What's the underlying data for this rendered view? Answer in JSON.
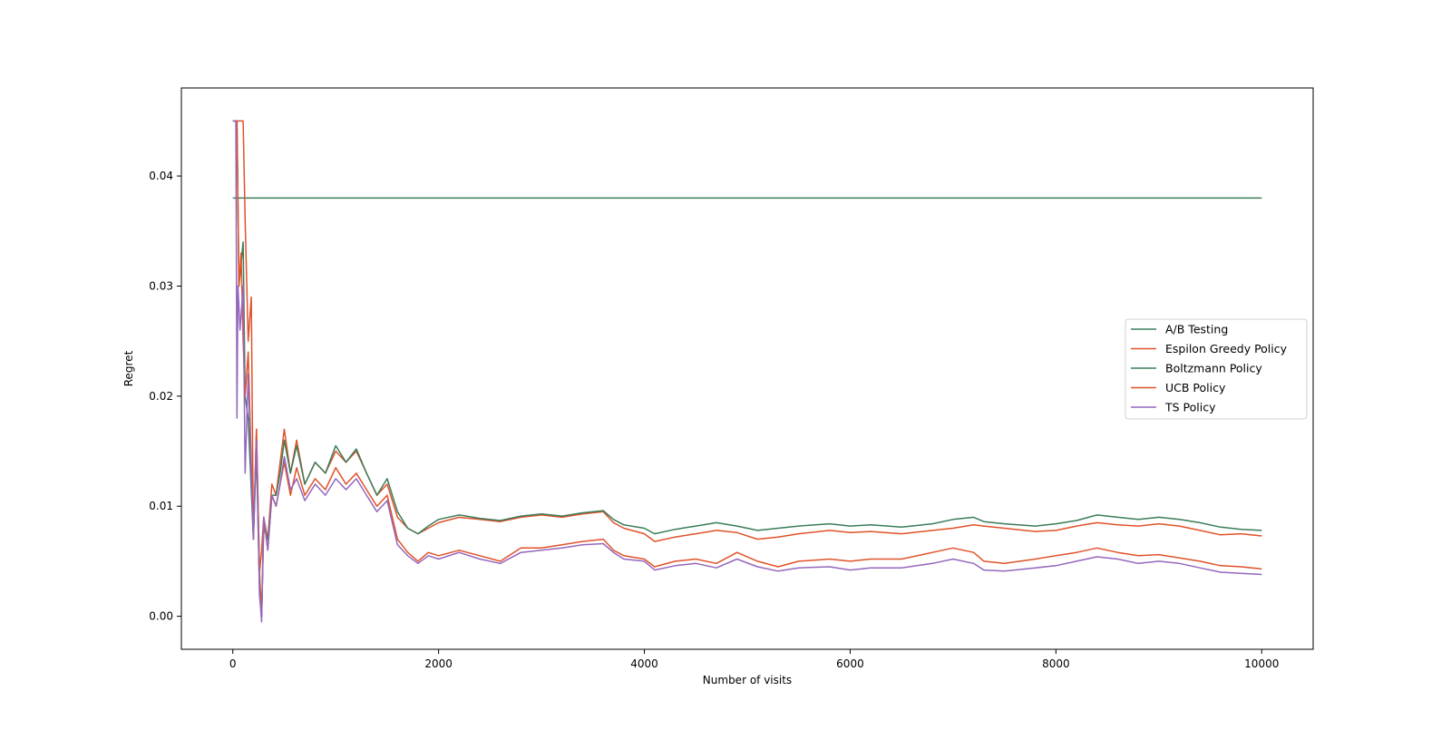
{
  "chart_data": {
    "type": "line",
    "title": "",
    "xlabel": "Number of visits",
    "ylabel": "Regret",
    "xlim": [
      -500,
      10500
    ],
    "ylim": [
      -0.003,
      0.048
    ],
    "xticks": [
      0,
      2000,
      4000,
      6000,
      8000,
      10000
    ],
    "xtick_labels": [
      "0",
      "2000",
      "4000",
      "6000",
      "8000",
      "10000"
    ],
    "yticks": [
      0.0,
      0.01,
      0.02,
      0.03,
      0.04
    ],
    "ytick_labels": [
      "0.00",
      "0.01",
      "0.02",
      "0.03",
      "0.04"
    ],
    "grid": false,
    "legend_position": "center-right",
    "series": [
      {
        "name": "A/B Testing",
        "color": "#3a7d5a",
        "x": [
          0,
          10000
        ],
        "y": [
          0.038,
          0.038
        ]
      },
      {
        "name": "Espilon Greedy Policy",
        "color": "#e0522a",
        "x": [
          0,
          50,
          60,
          100,
          120,
          150,
          180,
          200,
          230,
          260,
          280,
          300,
          340,
          380,
          420,
          460,
          500,
          560,
          620,
          700,
          800,
          900,
          1000,
          1100,
          1200,
          1300,
          1400,
          1500,
          1600,
          1700,
          1800,
          1900,
          2000,
          2200,
          2400,
          2600,
          2800,
          3000,
          3200,
          3400,
          3600,
          3700,
          3800,
          4000,
          4100,
          4300,
          4500,
          4700,
          4900,
          5100,
          5300,
          5500,
          5800,
          6000,
          6200,
          6500,
          6800,
          7000,
          7200,
          7300,
          7500,
          7800,
          8000,
          8200,
          8400,
          8600,
          8800,
          9000,
          9200,
          9400,
          9600,
          9800,
          10000
        ],
        "y": [
          0.045,
          0.045,
          0.045,
          0.045,
          0.036,
          0.025,
          0.029,
          0.007,
          0.017,
          0.004,
          0.006,
          0.009,
          0.007,
          0.012,
          0.011,
          0.014,
          0.017,
          0.013,
          0.016,
          0.012,
          0.014,
          0.013,
          0.015,
          0.014,
          0.015,
          0.013,
          0.011,
          0.012,
          0.009,
          0.008,
          0.0075,
          0.008,
          0.0085,
          0.009,
          0.0088,
          0.0086,
          0.009,
          0.0092,
          0.009,
          0.0093,
          0.0095,
          0.0085,
          0.008,
          0.0075,
          0.0068,
          0.0072,
          0.0075,
          0.0078,
          0.0076,
          0.007,
          0.0072,
          0.0075,
          0.0078,
          0.0076,
          0.0077,
          0.0075,
          0.0078,
          0.008,
          0.0083,
          0.0082,
          0.008,
          0.0077,
          0.0078,
          0.0082,
          0.0085,
          0.0083,
          0.0082,
          0.0084,
          0.0082,
          0.0078,
          0.0074,
          0.0075,
          0.0073
        ]
      },
      {
        "name": "Boltzmann Policy",
        "color": "#3a7d5a",
        "x": [
          0,
          40,
          60,
          100,
          120,
          150,
          200,
          230,
          260,
          280,
          300,
          340,
          380,
          420,
          460,
          500,
          560,
          620,
          700,
          800,
          900,
          1000,
          1100,
          1200,
          1300,
          1400,
          1500,
          1600,
          1700,
          1800,
          1900,
          2000,
          2200,
          2400,
          2600,
          2800,
          3000,
          3200,
          3400,
          3600,
          3700,
          3800,
          4000,
          4100,
          4300,
          4500,
          4700,
          4900,
          5100,
          5300,
          5500,
          5800,
          6000,
          6200,
          6500,
          6800,
          7000,
          7200,
          7300,
          7500,
          7800,
          8000,
          8200,
          8400,
          8600,
          8800,
          9000,
          9200,
          9400,
          9600,
          9800,
          10000
        ],
        "y": [
          0.045,
          0.045,
          0.03,
          0.034,
          0.02,
          0.018,
          0.007,
          0.015,
          0.002,
          0.0,
          0.008,
          0.007,
          0.011,
          0.011,
          0.013,
          0.016,
          0.013,
          0.0155,
          0.012,
          0.014,
          0.013,
          0.0155,
          0.014,
          0.0152,
          0.013,
          0.011,
          0.0125,
          0.0095,
          0.008,
          0.0075,
          0.0082,
          0.0088,
          0.0092,
          0.0089,
          0.0087,
          0.0091,
          0.0093,
          0.0091,
          0.0094,
          0.0096,
          0.0088,
          0.0083,
          0.008,
          0.0075,
          0.0079,
          0.0082,
          0.0085,
          0.0082,
          0.0078,
          0.008,
          0.0082,
          0.0084,
          0.0082,
          0.0083,
          0.0081,
          0.0084,
          0.0088,
          0.009,
          0.0086,
          0.0084,
          0.0082,
          0.0084,
          0.0087,
          0.0092,
          0.009,
          0.0088,
          0.009,
          0.0088,
          0.0085,
          0.0081,
          0.0079,
          0.0078
        ]
      },
      {
        "name": "UCB Policy",
        "color": "#e0522a",
        "x": [
          0,
          40,
          60,
          80,
          100,
          120,
          150,
          200,
          230,
          260,
          280,
          300,
          340,
          380,
          420,
          460,
          500,
          560,
          620,
          700,
          800,
          900,
          1000,
          1100,
          1200,
          1300,
          1400,
          1500,
          1600,
          1700,
          1800,
          1900,
          2000,
          2200,
          2400,
          2600,
          2800,
          3000,
          3200,
          3400,
          3600,
          3700,
          3800,
          4000,
          4100,
          4300,
          4500,
          4700,
          4900,
          5100,
          5300,
          5500,
          5800,
          6000,
          6200,
          6500,
          6800,
          7000,
          7200,
          7300,
          7500,
          7800,
          8000,
          8200,
          8400,
          8600,
          8800,
          9000,
          9200,
          9400,
          9600,
          9800,
          10000
        ],
        "y": [
          0.045,
          0.045,
          0.03,
          0.033,
          0.025,
          0.02,
          0.024,
          0.007,
          0.017,
          0.004,
          0.0,
          0.009,
          0.006,
          0.011,
          0.01,
          0.012,
          0.014,
          0.011,
          0.0135,
          0.011,
          0.0125,
          0.0115,
          0.0135,
          0.012,
          0.013,
          0.0115,
          0.01,
          0.011,
          0.007,
          0.0058,
          0.005,
          0.0058,
          0.0055,
          0.006,
          0.0055,
          0.005,
          0.0062,
          0.0062,
          0.0065,
          0.0068,
          0.007,
          0.006,
          0.0055,
          0.0052,
          0.0045,
          0.005,
          0.0052,
          0.0048,
          0.0058,
          0.005,
          0.0045,
          0.005,
          0.0052,
          0.005,
          0.0052,
          0.0052,
          0.0058,
          0.0062,
          0.0058,
          0.005,
          0.0048,
          0.0052,
          0.0055,
          0.0058,
          0.0062,
          0.0058,
          0.0055,
          0.0056,
          0.0053,
          0.005,
          0.0046,
          0.0045,
          0.0043
        ]
      },
      {
        "name": "TS Policy",
        "color": "#9467bd",
        "x": [
          0,
          30,
          40,
          50,
          70,
          100,
          120,
          150,
          200,
          230,
          260,
          280,
          300,
          340,
          380,
          420,
          460,
          500,
          560,
          620,
          700,
          800,
          900,
          1000,
          1100,
          1200,
          1300,
          1400,
          1500,
          1600,
          1700,
          1800,
          1900,
          2000,
          2200,
          2400,
          2600,
          2800,
          3000,
          3200,
          3400,
          3600,
          3700,
          3800,
          4000,
          4100,
          4300,
          4500,
          4700,
          4900,
          5100,
          5300,
          5500,
          5800,
          6000,
          6200,
          6500,
          6800,
          7000,
          7200,
          7300,
          7500,
          7800,
          8000,
          8200,
          8400,
          8600,
          8800,
          9000,
          9200,
          9400,
          9600,
          9800,
          10000
        ],
        "y": [
          0.045,
          0.045,
          0.018,
          0.03,
          0.026,
          0.03,
          0.013,
          0.022,
          0.007,
          0.016,
          0.002,
          -0.0005,
          0.009,
          0.006,
          0.011,
          0.01,
          0.012,
          0.0145,
          0.0115,
          0.0125,
          0.0105,
          0.012,
          0.011,
          0.0125,
          0.0115,
          0.0125,
          0.011,
          0.0095,
          0.0105,
          0.0065,
          0.0055,
          0.0048,
          0.0055,
          0.0052,
          0.0058,
          0.0052,
          0.0048,
          0.0058,
          0.006,
          0.0062,
          0.0065,
          0.0066,
          0.0058,
          0.0052,
          0.005,
          0.0042,
          0.0046,
          0.0048,
          0.0044,
          0.0052,
          0.0045,
          0.0041,
          0.0044,
          0.0045,
          0.0042,
          0.0044,
          0.0044,
          0.0048,
          0.0052,
          0.0048,
          0.0042,
          0.0041,
          0.0044,
          0.0046,
          0.005,
          0.0054,
          0.0052,
          0.0048,
          0.005,
          0.0048,
          0.0044,
          0.004,
          0.0039,
          0.0038
        ]
      }
    ]
  }
}
